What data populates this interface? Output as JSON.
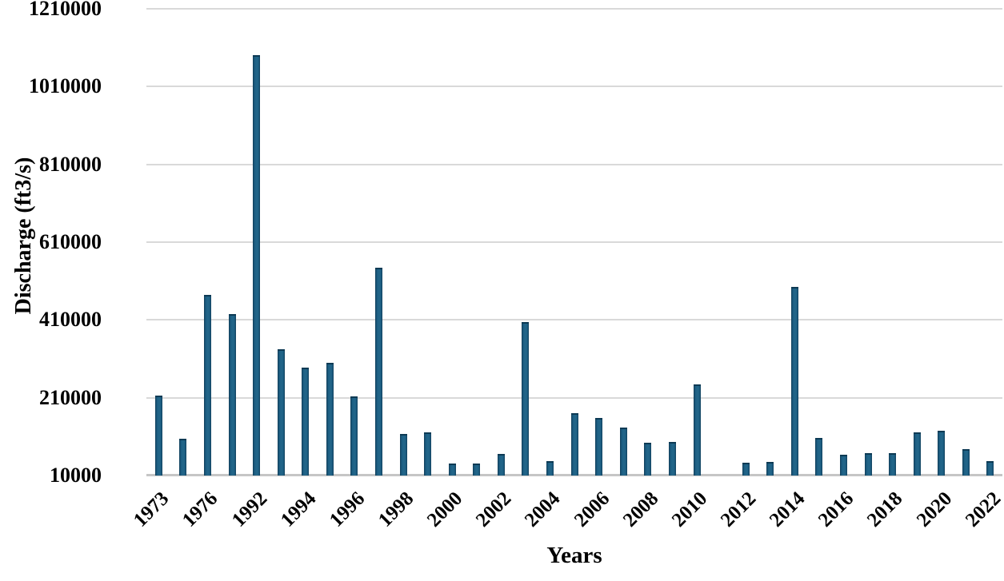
{
  "chart_data": {
    "type": "bar",
    "title": "",
    "xlabel": "Years",
    "ylabel": "Discharge (ft3/s)",
    "ylim": [
      10000,
      1210000
    ],
    "y_ticks": [
      10000,
      210000,
      410000,
      610000,
      810000,
      1010000,
      1210000
    ],
    "y_tick_labels": [
      "10000",
      "210000",
      "410000",
      "610000",
      "810000",
      "1010000",
      "1210000"
    ],
    "x_tick_labels_visible": [
      "1973",
      "1976",
      "1992",
      "1994",
      "1996",
      "1998",
      "2000",
      "2002",
      "2004",
      "2006",
      "2008",
      "2010",
      "2012",
      "2014",
      "2016",
      "2018",
      "2020",
      "2022"
    ],
    "grid": true,
    "legend": false,
    "bars": [
      {
        "tick": "1973",
        "value": 215000
      },
      {
        "tick": "",
        "value": 105000
      },
      {
        "tick": "1976",
        "value": 475000
      },
      {
        "tick": "",
        "value": 425000
      },
      {
        "tick": "1992",
        "value": 1090000
      },
      {
        "tick": "",
        "value": 335000
      },
      {
        "tick": "1994",
        "value": 288000
      },
      {
        "tick": "",
        "value": 300000
      },
      {
        "tick": "1996",
        "value": 213000
      },
      {
        "tick": "",
        "value": 545000
      },
      {
        "tick": "1998",
        "value": 117000
      },
      {
        "tick": "",
        "value": 120000
      },
      {
        "tick": "2000",
        "value": 40000
      },
      {
        "tick": "",
        "value": 40000
      },
      {
        "tick": "2002",
        "value": 65000
      },
      {
        "tick": "",
        "value": 405000
      },
      {
        "tick": "2004",
        "value": 48000
      },
      {
        "tick": "",
        "value": 170000
      },
      {
        "tick": "2006",
        "value": 158000
      },
      {
        "tick": "",
        "value": 133000
      },
      {
        "tick": "2008",
        "value": 94000
      },
      {
        "tick": "",
        "value": 96000
      },
      {
        "tick": "2010",
        "value": 245000
      },
      {
        "tick": "",
        "value": null
      },
      {
        "tick": "2012",
        "value": 43000
      },
      {
        "tick": "",
        "value": 45000
      },
      {
        "tick": "2014",
        "value": 495000
      },
      {
        "tick": "",
        "value": 107000
      },
      {
        "tick": "2016",
        "value": 63000
      },
      {
        "tick": "",
        "value": 67000
      },
      {
        "tick": "2018",
        "value": 67000
      },
      {
        "tick": "",
        "value": 120000
      },
      {
        "tick": "2020",
        "value": 125000
      },
      {
        "tick": "",
        "value": 78000
      },
      {
        "tick": "2022",
        "value": 46000
      }
    ],
    "colors": {
      "bar_fill": "#1d6085",
      "bar_fill_light": "#236689",
      "bar_edge": "#123f5b",
      "bar_cap": "#0d3a54",
      "gridline": "#d9d9d9",
      "axis_line": "#c6c6c6",
      "text": "#000000",
      "background": "#ffffff"
    }
  }
}
